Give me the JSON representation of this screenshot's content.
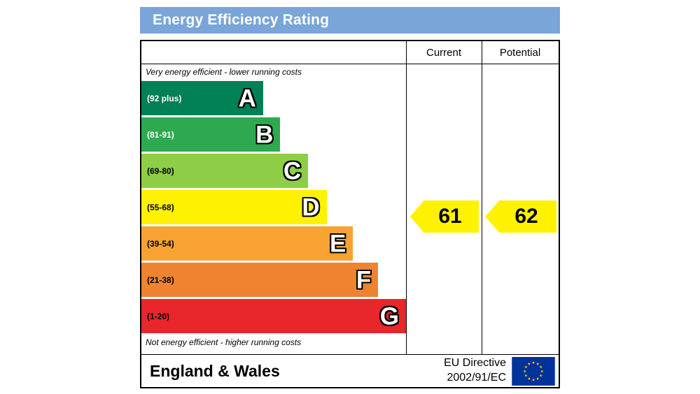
{
  "title": "Energy Efficiency Rating",
  "columns": {
    "current": "Current",
    "potential": "Potential"
  },
  "notes": {
    "top": "Very energy efficient - lower running costs",
    "bottom": "Not energy efficient - higher running costs"
  },
  "footer": {
    "region": "England & Wales",
    "directive_line1": "EU Directive",
    "directive_line2": "2002/91/EC",
    "flag_icon": "eu-flag-icon"
  },
  "colors": {
    "title_bg": "#79a5d8",
    "title_text": "#ffffff",
    "border": "#000000",
    "arrow_fill": "#fff200",
    "eu_flag_bg": "#003399",
    "eu_flag_star": "#ffcc00"
  },
  "chart_data": {
    "type": "bar",
    "title": "Energy Efficiency Rating",
    "categories": [
      "A",
      "B",
      "C",
      "D",
      "E",
      "F",
      "G"
    ],
    "bands": [
      {
        "letter": "A",
        "range_label": "(92 plus)",
        "min": 92,
        "max": 100,
        "color": "#008054",
        "label_color": "#ffffff",
        "width_pct": 46
      },
      {
        "letter": "B",
        "range_label": "(81-91)",
        "min": 81,
        "max": 91,
        "color": "#2ea94f",
        "label_color": "#ffffff",
        "width_pct": 52.5
      },
      {
        "letter": "C",
        "range_label": "(69-80)",
        "min": 69,
        "max": 80,
        "color": "#8dce46",
        "label_color": "#000000",
        "width_pct": 63
      },
      {
        "letter": "D",
        "range_label": "(55-68)",
        "min": 55,
        "max": 68,
        "color": "#fff200",
        "label_color": "#000000",
        "width_pct": 70
      },
      {
        "letter": "E",
        "range_label": "(39-54)",
        "min": 39,
        "max": 54,
        "color": "#f7a233",
        "label_color": "#000000",
        "width_pct": 80
      },
      {
        "letter": "F",
        "range_label": "(21-38)",
        "min": 21,
        "max": 38,
        "color": "#ee8330",
        "label_color": "#000000",
        "width_pct": 89.5
      },
      {
        "letter": "G",
        "range_label": "(1-20)",
        "min": 1,
        "max": 20,
        "color": "#e9262c",
        "label_color": "#000000",
        "width_pct": 100
      }
    ],
    "current": {
      "value": 61,
      "band": "D"
    },
    "potential": {
      "value": 62,
      "band": "D"
    }
  }
}
